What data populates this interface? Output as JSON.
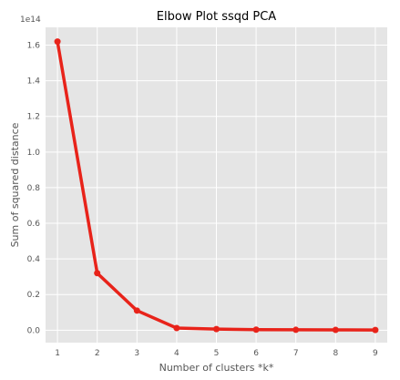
{
  "chart_data": {
    "type": "line",
    "title": "Elbow Plot ssqd PCA",
    "xlabel": "Number of clusters *k*",
    "ylabel": "Sum of squared distance",
    "y_offset_label": "1e14",
    "x": [
      1,
      2,
      3,
      4,
      5,
      6,
      7,
      8,
      9
    ],
    "x_ticks": [
      "1",
      "2",
      "3",
      "4",
      "5",
      "6",
      "7",
      "8",
      "9"
    ],
    "y_ticks": [
      "0.0",
      "0.2",
      "0.4",
      "0.6",
      "0.8",
      "1.0",
      "1.2",
      "1.4",
      "1.6"
    ],
    "y_tick_values": [
      0.0,
      0.2,
      0.4,
      0.6,
      0.8,
      1.0,
      1.2,
      1.4,
      1.6
    ],
    "series": [
      {
        "values": [
          1.62,
          0.32,
          0.11,
          0.012,
          0.006,
          0.003,
          0.002,
          0.0015,
          0.001
        ],
        "color": "#e8231a"
      }
    ],
    "xlim": [
      0.7,
      9.3
    ],
    "ylim": [
      -0.07,
      1.7
    ],
    "grid": true,
    "background": "#e5e5e5",
    "grid_color": "#ffffff"
  }
}
